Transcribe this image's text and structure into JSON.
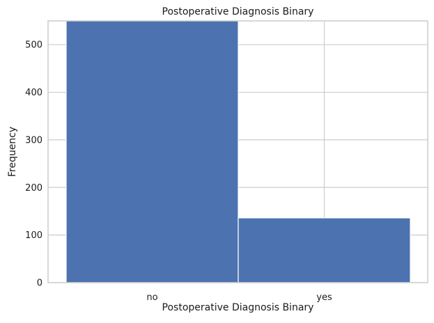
{
  "chart_data": {
    "type": "bar",
    "title": "Postoperative Diagnosis Binary",
    "xlabel": "Postoperative Diagnosis Binary",
    "ylabel": "Frequency",
    "categories": [
      "no",
      "yes"
    ],
    "values": [
      550,
      136
    ],
    "ylim": [
      0,
      550
    ],
    "yticks": [
      0,
      100,
      200,
      300,
      400,
      500
    ],
    "grid": true,
    "legend": "none",
    "bar_color": "#4c72b0",
    "grid_color": "#cccccc",
    "frame_color": "#cccccc"
  }
}
